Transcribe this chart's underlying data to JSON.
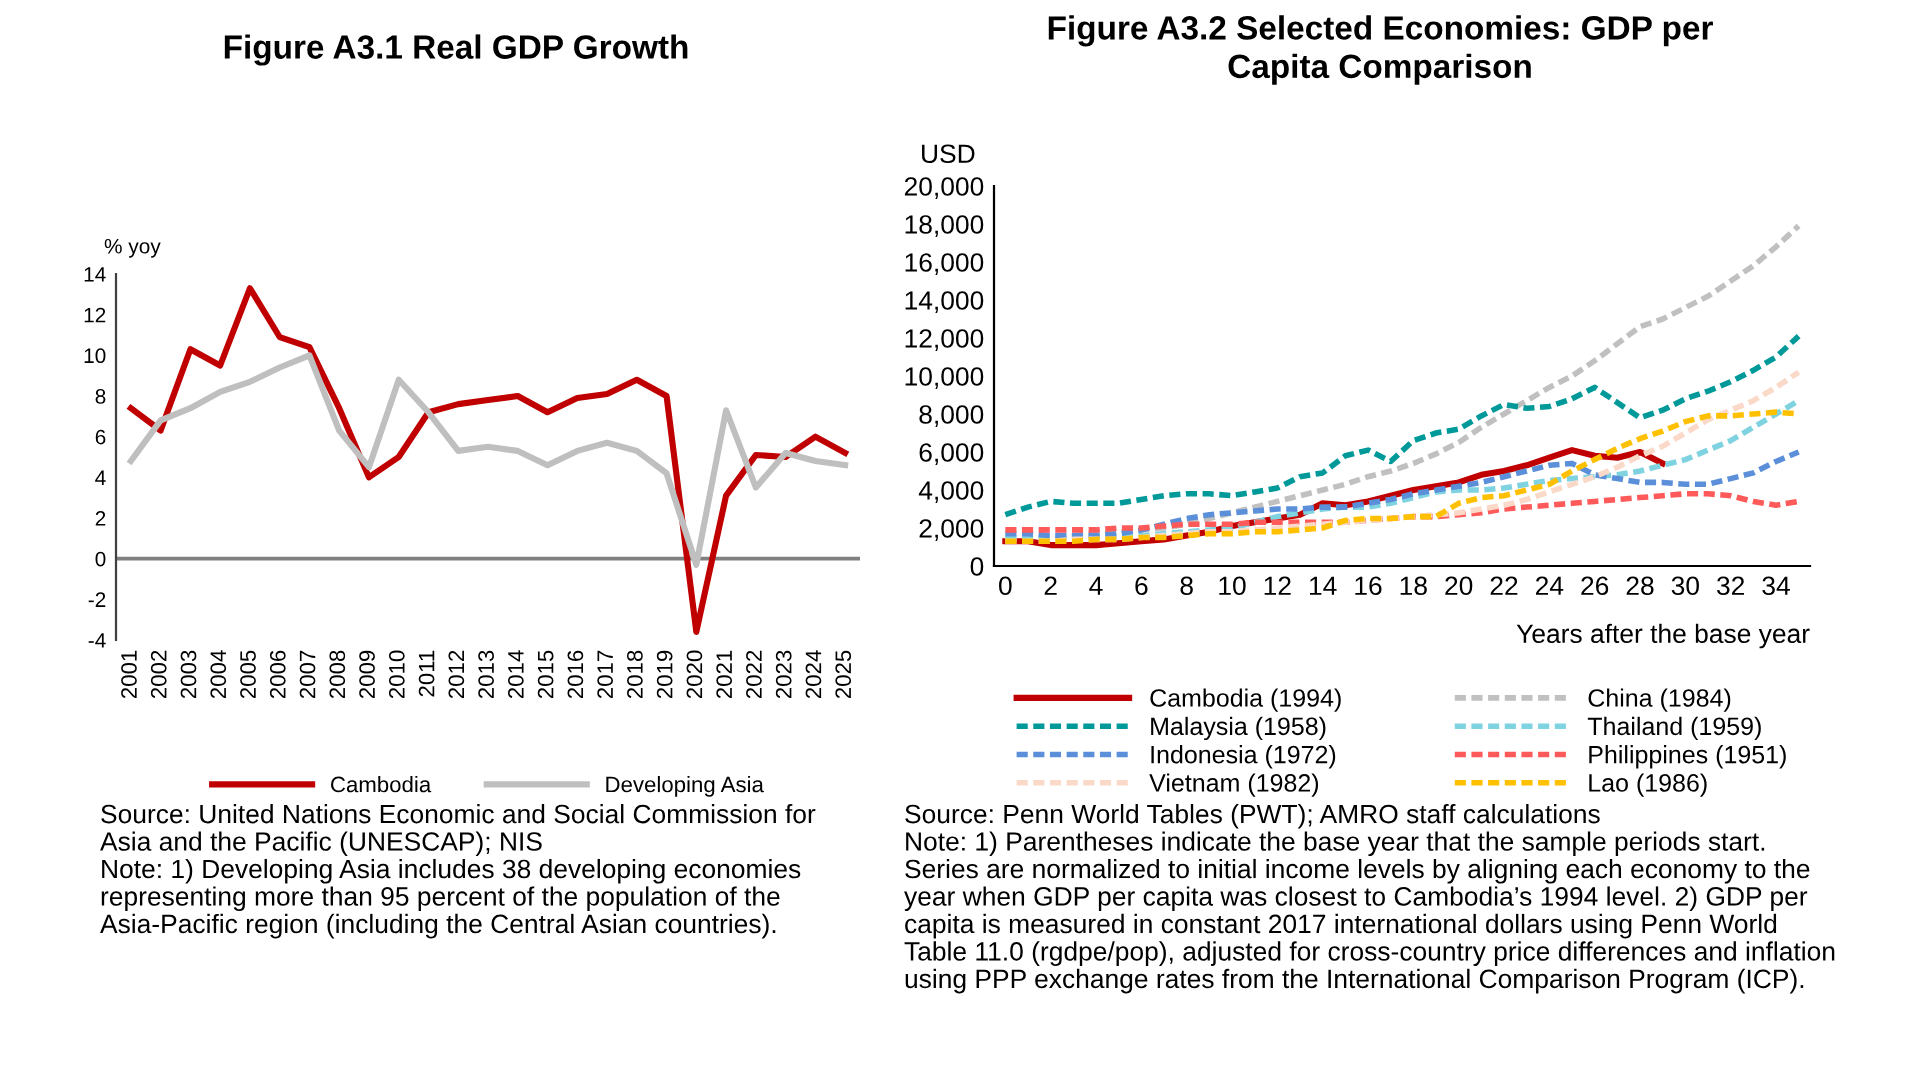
{
  "chart_data": [
    {
      "type": "line",
      "title": "Figure A3.1 Real GDP Growth",
      "ylabel": "% yoy",
      "categories": [
        "2001",
        "2002",
        "2003",
        "2004",
        "2005",
        "2006",
        "2007",
        "2008",
        "2009",
        "2010",
        "2011",
        "2012",
        "2013",
        "2014",
        "2015",
        "2016",
        "2017",
        "2018",
        "2019",
        "2020",
        "2021",
        "2022",
        "2023",
        "2024",
        "2025"
      ],
      "series": [
        {
          "name": "Cambodia",
          "color": "#c00000",
          "line_style": "solid",
          "values": [
            7.4,
            6.3,
            10.3,
            9.5,
            13.3,
            10.9,
            10.4,
            7.4,
            4.0,
            5.0,
            7.2,
            7.6,
            7.8,
            8.0,
            7.2,
            7.9,
            8.1,
            8.8,
            8.0,
            -3.6,
            3.1,
            5.1,
            5.0,
            6.0,
            5.2
          ]
        },
        {
          "name": "Developing Asia",
          "color": "#bfbfbf",
          "line_style": "solid",
          "values": [
            4.8,
            6.8,
            7.4,
            8.2,
            8.7,
            9.4,
            10.0,
            6.3,
            4.5,
            8.8,
            7.2,
            5.3,
            5.5,
            5.3,
            4.6,
            5.3,
            5.7,
            5.3,
            4.2,
            -0.3,
            7.3,
            3.5,
            5.2,
            4.8,
            4.6
          ]
        }
      ],
      "ylim": [
        -4,
        14
      ],
      "yticks": [
        -4,
        -2,
        0,
        2,
        4,
        6,
        8,
        10,
        12,
        14
      ],
      "grid": false,
      "legend": "bottom",
      "marker": "none",
      "ref_lines": [
        {
          "axis": "y",
          "value": 0,
          "color": "#808080"
        }
      ],
      "annotations": [
        "Source: United Nations Economic and Social Commission for Asia and the Pacific (UNESCAP); NIS",
        "Note: 1) Developing Asia includes 38 developing economies representing more than 95 percent of the population of the Asia-Pacific region (including the Central Asian countries)."
      ]
    },
    {
      "type": "line",
      "title": "Figure A3.2 Selected Economies: GDP per Capita Comparison",
      "ylabel": "USD",
      "xlabel": "Years after the base year",
      "x": [
        0,
        1,
        2,
        3,
        4,
        5,
        6,
        7,
        8,
        9,
        10,
        11,
        12,
        13,
        14,
        15,
        16,
        17,
        18,
        19,
        20,
        21,
        22,
        23,
        24,
        25,
        26,
        27,
        28,
        29,
        30,
        31,
        32,
        33,
        34,
        35
      ],
      "series": [
        {
          "name": "Cambodia (1994)",
          "color": "#c00000",
          "line_style": "solid",
          "values": [
            1300,
            1300,
            1100,
            1100,
            1100,
            1200,
            1300,
            1400,
            1600,
            1800,
            2100,
            2300,
            2500,
            2700,
            3300,
            3200,
            3400,
            3700,
            4000,
            4200,
            4400,
            4800,
            5000,
            5300,
            5700,
            6100,
            5800,
            5700,
            6000,
            5400,
            null,
            null,
            null,
            null,
            null,
            null
          ]
        },
        {
          "name": "China (1984)",
          "color": "#c0c0c0",
          "line_style": "dashed",
          "values": [
            1400,
            1400,
            1500,
            1600,
            1700,
            1800,
            1900,
            2000,
            2200,
            2500,
            2800,
            3100,
            3400,
            3700,
            4000,
            4300,
            4700,
            5000,
            5400,
            5900,
            6500,
            7300,
            8000,
            8700,
            9400,
            10000,
            10800,
            11700,
            12600,
            13000,
            13600,
            14200,
            15000,
            15800,
            16800,
            17900
          ]
        },
        {
          "name": "Malaysia (1958)",
          "color": "#009999",
          "line_style": "dashed",
          "values": [
            2700,
            3100,
            3400,
            3300,
            3300,
            3300,
            3500,
            3700,
            3800,
            3800,
            3700,
            3900,
            4100,
            4700,
            4900,
            5800,
            6100,
            5500,
            6600,
            7000,
            7200,
            7900,
            8500,
            8300,
            8400,
            8800,
            9400,
            8600,
            7800,
            8200,
            8800,
            9200,
            9700,
            10300,
            11000,
            12100
          ]
        },
        {
          "name": "Thailand (1959)",
          "color": "#7fd3e0",
          "line_style": "dashed",
          "values": [
            1500,
            1500,
            1500,
            1500,
            1500,
            1500,
            1600,
            1700,
            1800,
            1900,
            2000,
            2300,
            2600,
            2800,
            3000,
            3100,
            3100,
            3300,
            3600,
            3900,
            4000,
            4000,
            4100,
            4300,
            4500,
            4600,
            4700,
            4800,
            5000,
            5300,
            5600,
            6100,
            6600,
            7300,
            8000,
            8700
          ]
        },
        {
          "name": "Indonesia (1972)",
          "color": "#5b8fd9",
          "line_style": "dashed",
          "values": [
            1700,
            1700,
            1600,
            1600,
            1600,
            1700,
            1900,
            2200,
            2500,
            2700,
            2800,
            2900,
            3000,
            3000,
            3100,
            3100,
            3300,
            3500,
            3800,
            4000,
            4200,
            4400,
            4700,
            5000,
            5300,
            5400,
            4800,
            4600,
            4400,
            4400,
            4300,
            4300,
            4600,
            4900,
            5500,
            6000
          ]
        },
        {
          "name": "Philippines (1951)",
          "color": "#ff5a5a",
          "line_style": "dashed",
          "values": [
            1900,
            1900,
            1900,
            1900,
            1900,
            2000,
            2000,
            2100,
            2200,
            2200,
            2200,
            2300,
            2300,
            2300,
            2300,
            2300,
            2400,
            2500,
            2600,
            2600,
            2700,
            2800,
            3000,
            3100,
            3200,
            3300,
            3400,
            3500,
            3600,
            3700,
            3800,
            3800,
            3700,
            3400,
            3200,
            3400
          ]
        },
        {
          "name": "Vietnam (1982)",
          "color": "#fbd9c9",
          "line_style": "dashed",
          "values": [
            1300,
            1300,
            1300,
            1400,
            1400,
            1400,
            1500,
            1600,
            1700,
            1800,
            1800,
            1900,
            2000,
            2100,
            2200,
            2300,
            2400,
            2500,
            2600,
            2700,
            2800,
            3000,
            3200,
            3500,
            3900,
            4300,
            4700,
            5200,
            5800,
            6300,
            7000,
            7700,
            8200,
            8700,
            9400,
            10200
          ]
        },
        {
          "name": "Lao (1986)",
          "color": "#ffc000",
          "line_style": "dashed",
          "values": [
            1300,
            1300,
            1300,
            1300,
            1400,
            1400,
            1500,
            1500,
            1600,
            1700,
            1700,
            1800,
            1800,
            1900,
            2000,
            2400,
            2500,
            2500,
            2600,
            2600,
            3300,
            3600,
            3700,
            4000,
            4300,
            5000,
            5600,
            6200,
            6700,
            7100,
            7600,
            7900,
            7900,
            8000,
            8100,
            8000
          ]
        }
      ],
      "xlim": [
        -0.5,
        35.5
      ],
      "xticks": [
        0,
        2,
        4,
        6,
        8,
        10,
        12,
        14,
        16,
        18,
        20,
        22,
        24,
        26,
        28,
        30,
        32,
        34
      ],
      "ylim": [
        0,
        20000
      ],
      "yticks": [
        0,
        {
          "value": 2000,
          "label": "2,000"
        },
        {
          "value": 4000,
          "label": "4,000"
        },
        {
          "value": 6000,
          "label": "6,000"
        },
        {
          "value": 8000,
          "label": "8,000"
        },
        {
          "value": 10000,
          "label": "10,000"
        },
        {
          "value": 12000,
          "label": "12,000"
        },
        {
          "value": 14000,
          "label": "14,000"
        },
        {
          "value": 16000,
          "label": "16,000"
        },
        {
          "value": 18000,
          "label": "18,000"
        },
        {
          "value": 20000,
          "label": "20,000"
        }
      ],
      "grid": false,
      "legend": "bottom",
      "marker": "none",
      "annotations": [
        "Source: Penn World Tables (PWT); AMRO staff calculations",
        "Note: 1) Parentheses indicate the base year that the sample periods start. Series are normalized to initial income levels by aligning each economy to the year when GDP per capita was closest to Cambodia’s 1994 level. 2) GDP per capita is measured in constant 2017 international dollars using Penn World Table 11.0 (rgdpe/pop), adjusted for cross-country price differences and inflation using PPP exchange rates from the International Comparison Program (ICP)."
      ]
    }
  ]
}
